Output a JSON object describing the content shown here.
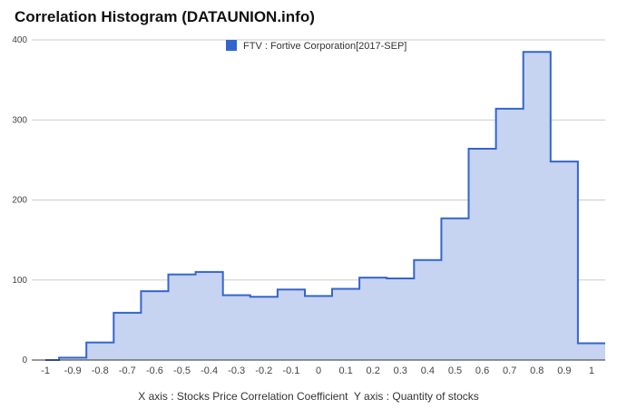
{
  "title": "Correlation Histogram (DATAUNION.info)",
  "caption": "X axis : Stocks Price Correlation Coefficient  Y axis : Quantity of stocks",
  "chart_data": {
    "type": "area",
    "step": true,
    "title": "Correlation Histogram (DATAUNION.info)",
    "xlabel": "",
    "ylabel": "",
    "x_ticks": [
      "-1",
      "-0.9",
      "-0.8",
      "-0.7",
      "-0.6",
      "-0.5",
      "-0.4",
      "-0.3",
      "-0.2",
      "-0.1",
      "0",
      "0.1",
      "0.2",
      "0.3",
      "0.4",
      "0.5",
      "0.6",
      "0.7",
      "0.8",
      "0.9",
      "1"
    ],
    "y_ticks": [
      "0",
      "100",
      "200",
      "300",
      "400"
    ],
    "xlim": [
      -1.05,
      1.05
    ],
    "ylim": [
      0,
      400
    ],
    "grid": true,
    "legend_position": "top-center",
    "series": [
      {
        "name": "FTV : Fortive Corporation[2017-SEP]",
        "color": "#3366cc",
        "fill": "#c6d3f1",
        "x": [
          -1,
          -0.9,
          -0.8,
          -0.7,
          -0.6,
          -0.5,
          -0.4,
          -0.3,
          -0.2,
          -0.1,
          0,
          0.1,
          0.2,
          0.3,
          0.4,
          0.5,
          0.6,
          0.7,
          0.8,
          0.9,
          1
        ],
        "values": [
          0,
          3,
          22,
          59,
          86,
          107,
          110,
          81,
          79,
          88,
          80,
          89,
          103,
          102,
          125,
          177,
          264,
          314,
          385,
          248,
          21
        ]
      }
    ]
  }
}
